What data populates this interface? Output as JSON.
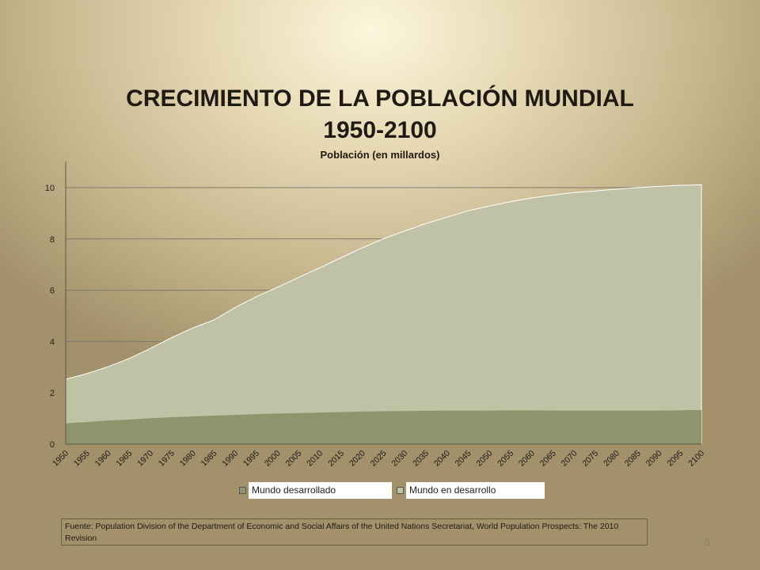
{
  "slide": {
    "title_line1": "CRECIMIENTO DE LA POBLACIÓN MUNDIAL",
    "title_line2": "1950-2100",
    "source": "Fuente: Population Division of the Department of Economic and Social Affairs of the United Nations Secretariat, World Population Prospects: The 2010 Revision",
    "slide_number": "3"
  },
  "chart_data": {
    "type": "area",
    "stacked": true,
    "title": "",
    "subtitle": "Población (en millardos)",
    "xlabel": "",
    "ylabel": "",
    "ylim": [
      0,
      11
    ],
    "yticks": [
      0,
      2,
      4,
      6,
      8,
      10
    ],
    "grid": true,
    "legend_position": "bottom",
    "x": [
      "1950",
      "1955",
      "1960",
      "1965",
      "1970",
      "1975",
      "1980",
      "1985",
      "1990",
      "1995",
      "2000",
      "2005",
      "2010",
      "2015",
      "2020",
      "2025",
      "2030",
      "2035",
      "2040",
      "2045",
      "2050",
      "2055",
      "2060",
      "2065",
      "2070",
      "2075",
      "2080",
      "2085",
      "2090",
      "2095",
      "2100"
    ],
    "series": [
      {
        "name": "Mundo desarrollado",
        "color": "#8f946c",
        "values": [
          0.81,
          0.86,
          0.92,
          0.96,
          1.01,
          1.05,
          1.08,
          1.11,
          1.14,
          1.17,
          1.19,
          1.21,
          1.23,
          1.25,
          1.27,
          1.28,
          1.29,
          1.3,
          1.31,
          1.31,
          1.31,
          1.32,
          1.32,
          1.31,
          1.31,
          1.31,
          1.31,
          1.31,
          1.31,
          1.32,
          1.33
        ]
      },
      {
        "name": "Mundo en desarrollo",
        "color": "#c0c2a5",
        "values": [
          1.72,
          1.89,
          2.1,
          2.38,
          2.72,
          3.1,
          3.45,
          3.73,
          4.19,
          4.58,
          4.93,
          5.29,
          5.65,
          6.02,
          6.38,
          6.73,
          7.02,
          7.3,
          7.54,
          7.79,
          7.97,
          8.13,
          8.28,
          8.4,
          8.5,
          8.56,
          8.63,
          8.69,
          8.74,
          8.77,
          8.78
        ]
      }
    ]
  }
}
